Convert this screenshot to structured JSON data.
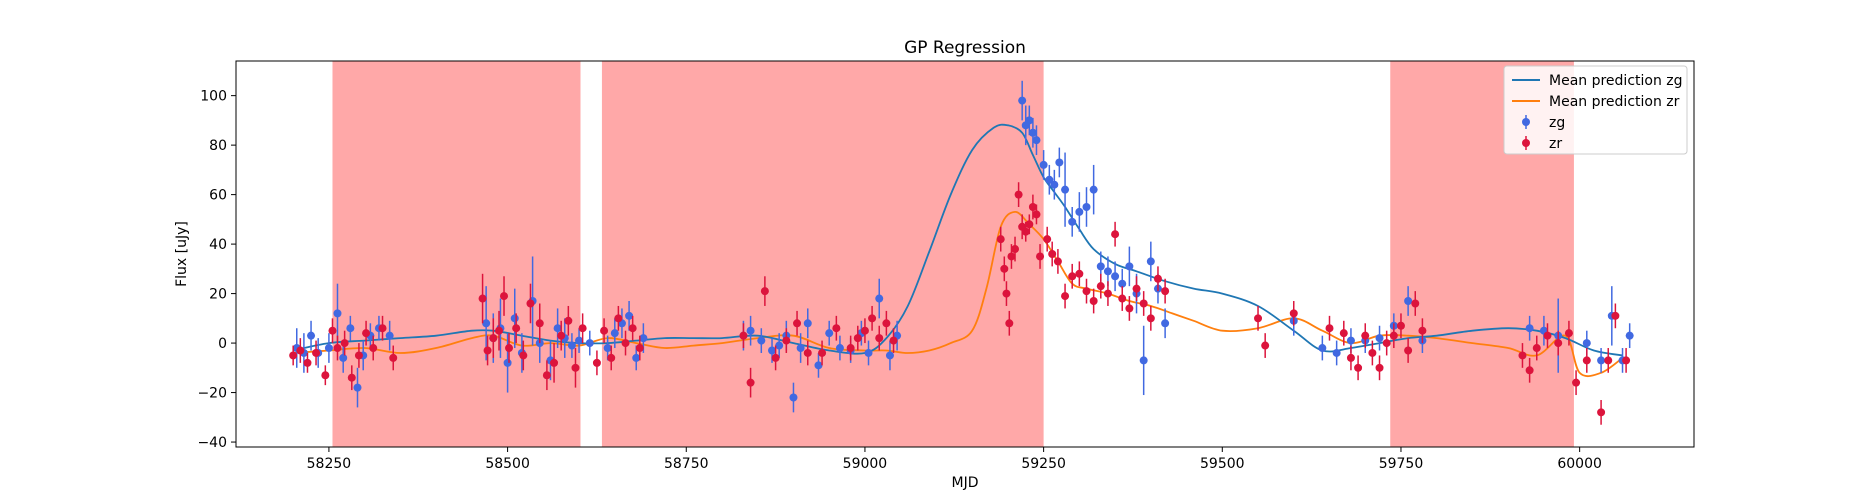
{
  "chart_data": {
    "type": "scatter",
    "title": "GP Regression",
    "xlabel": "MJD",
    "ylabel": "Flux [uJy]",
    "xlim": [
      58120,
      60160
    ],
    "ylim": [
      -42,
      114
    ],
    "xticks": [
      58250,
      58500,
      58750,
      59000,
      59250,
      59500,
      59750,
      60000
    ],
    "xtick_labels": [
      "58250",
      "58500",
      "58750",
      "59000",
      "59250",
      "59500",
      "59750",
      "60000"
    ],
    "yticks": [
      -40,
      -20,
      0,
      20,
      40,
      60,
      80,
      100
    ],
    "ytick_labels": [
      "−40",
      "−20",
      "0",
      "20",
      "40",
      "60",
      "80",
      "100"
    ],
    "grid": false,
    "legend_position": "top-right",
    "shaded_regions": [
      [
        58255,
        58602
      ],
      [
        58632,
        59250
      ],
      [
        59735,
        59992
      ]
    ],
    "shade_color": "#ff0000",
    "series": [
      {
        "name": "Mean prediction zg",
        "kind": "line",
        "color": "#1f77b4",
        "x": [
          58200,
          58250,
          58300,
          58350,
          58400,
          58450,
          58480,
          58520,
          58560,
          58600,
          58640,
          58680,
          58720,
          58760,
          58800,
          58850,
          58900,
          58950,
          59000,
          59030,
          59060,
          59090,
          59120,
          59150,
          59180,
          59200,
          59220,
          59235,
          59250,
          59265,
          59280,
          59300,
          59320,
          59350,
          59380,
          59420,
          59460,
          59500,
          59550,
          59600,
          59640,
          59680,
          59720,
          59760,
          59800,
          59850,
          59900,
          59940,
          59980,
          60020,
          60060
        ],
        "y": [
          -3,
          0,
          1,
          2,
          3,
          5,
          5,
          3,
          1,
          0,
          0,
          1,
          2,
          2,
          2,
          3,
          0,
          -3,
          -4,
          2,
          15,
          37,
          60,
          78,
          87,
          88,
          85,
          76,
          67,
          61,
          55,
          46,
          38,
          32,
          29,
          25,
          22,
          20,
          15,
          5,
          -3,
          -2,
          0,
          2,
          3,
          5,
          6,
          5,
          2,
          -3,
          -5
        ]
      },
      {
        "name": "Mean prediction zr",
        "kind": "line",
        "color": "#ff7f0e",
        "x": [
          58200,
          58250,
          58300,
          58350,
          58400,
          58450,
          58480,
          58520,
          58560,
          58600,
          58640,
          58680,
          58720,
          58760,
          58800,
          58850,
          58900,
          58950,
          59000,
          59030,
          59060,
          59090,
          59120,
          59150,
          59170,
          59190,
          59210,
          59230,
          59250,
          59270,
          59290,
          59310,
          59340,
          59370,
          59400,
          59430,
          59460,
          59500,
          59550,
          59600,
          59640,
          59680,
          59720,
          59760,
          59800,
          59850,
          59900,
          59940,
          59980,
          60000,
          60030,
          60060
        ],
        "y": [
          -4,
          -3,
          -2,
          -4,
          -2,
          2,
          3,
          -1,
          0,
          -1,
          2,
          0,
          -2,
          -1,
          0,
          2,
          3,
          -2,
          -3,
          -3,
          -4,
          -3,
          0,
          5,
          22,
          47,
          53,
          48,
          42,
          33,
          24,
          22,
          20,
          17,
          15,
          12,
          9,
          5,
          6,
          10,
          5,
          0,
          3,
          3,
          2,
          0,
          -2,
          -5,
          3,
          -12,
          -12,
          -6
        ]
      },
      {
        "name": "zg",
        "kind": "errorbar",
        "color": "#4169e1",
        "x": [
          58205,
          58215,
          58225,
          58235,
          58250,
          58262,
          58270,
          58280,
          58290,
          58298,
          58308,
          58320,
          58335,
          58470,
          58480,
          58490,
          58500,
          58510,
          58520,
          58535,
          58545,
          58560,
          58570,
          58580,
          58590,
          58600,
          58615,
          58640,
          58650,
          58660,
          58670,
          58680,
          58690,
          58830,
          58840,
          58855,
          58870,
          58880,
          58890,
          58900,
          58910,
          58920,
          58935,
          58950,
          58965,
          58980,
          58995,
          59005,
          59020,
          59035,
          59045,
          59220,
          59225,
          59230,
          59235,
          59240,
          59250,
          59258,
          59265,
          59272,
          59280,
          59290,
          59300,
          59310,
          59320,
          59330,
          59340,
          59350,
          59360,
          59370,
          59380,
          59390,
          59400,
          59410,
          59420,
          59600,
          59640,
          59660,
          59680,
          59700,
          59720,
          59740,
          59760,
          59780,
          59930,
          59950,
          59970,
          60010,
          60030,
          60045,
          60060,
          60070
        ],
        "y": [
          -2,
          -4,
          3,
          -4,
          -2,
          12,
          -6,
          6,
          -18,
          -5,
          3,
          6,
          3,
          8,
          2,
          6,
          -8,
          10,
          -4,
          17,
          0,
          -7,
          6,
          2,
          -1,
          1,
          0,
          -2,
          4,
          8,
          11,
          -6,
          2,
          3,
          5,
          1,
          -3,
          -1,
          3,
          -22,
          -2,
          8,
          -9,
          4,
          -2,
          -3,
          4,
          -4,
          18,
          -5,
          3,
          98,
          88,
          90,
          85,
          82,
          72,
          66,
          64,
          73,
          62,
          49,
          53,
          55,
          62,
          31,
          29,
          27,
          24,
          31,
          20,
          -7,
          33,
          22,
          8,
          9,
          -2,
          -4,
          1,
          1,
          2,
          7,
          17,
          1,
          6,
          5,
          3,
          0,
          -7,
          11,
          -7,
          3
        ],
        "err": [
          8,
          8,
          6,
          6,
          6,
          12,
          6,
          5,
          8,
          6,
          5,
          5,
          6,
          15,
          10,
          12,
          12,
          12,
          8,
          18,
          8,
          8,
          8,
          8,
          5,
          5,
          5,
          5,
          6,
          6,
          6,
          5,
          6,
          6,
          6,
          5,
          5,
          5,
          6,
          6,
          6,
          6,
          5,
          5,
          5,
          5,
          5,
          5,
          8,
          6,
          6,
          8,
          8,
          6,
          6,
          6,
          6,
          6,
          6,
          6,
          15,
          6,
          8,
          8,
          10,
          6,
          6,
          6,
          6,
          8,
          8,
          14,
          8,
          6,
          6,
          6,
          5,
          5,
          5,
          5,
          5,
          5,
          6,
          5,
          5,
          6,
          15,
          5,
          5,
          12,
          5,
          5
        ]
      },
      {
        "name": "zr",
        "kind": "errorbar",
        "color": "#dc143c",
        "x": [
          58200,
          58210,
          58220,
          58232,
          58245,
          58255,
          58262,
          58272,
          58282,
          58292,
          58302,
          58312,
          58325,
          58340,
          58465,
          58472,
          58480,
          58488,
          58495,
          58502,
          58512,
          58522,
          58532,
          58545,
          58555,
          58565,
          58575,
          58585,
          58595,
          58605,
          58625,
          58635,
          58645,
          58655,
          58665,
          58675,
          58685,
          58830,
          58840,
          58860,
          58875,
          58890,
          58905,
          58920,
          58940,
          58960,
          58980,
          58990,
          59000,
          59010,
          59020,
          59030,
          59040,
          59190,
          59195,
          59198,
          59202,
          59205,
          59210,
          59215,
          59220,
          59225,
          59230,
          59235,
          59240,
          59245,
          59255,
          59262,
          59270,
          59280,
          59290,
          59300,
          59310,
          59320,
          59330,
          59340,
          59350,
          59360,
          59370,
          59380,
          59390,
          59400,
          59410,
          59420,
          59550,
          59560,
          59600,
          59650,
          59670,
          59680,
          59690,
          59700,
          59710,
          59720,
          59730,
          59740,
          59750,
          59760,
          59770,
          59780,
          59920,
          59930,
          59940,
          59955,
          59970,
          59985,
          59995,
          60010,
          60030,
          60040,
          60050,
          60065
        ],
        "y": [
          -5,
          -3,
          -8,
          -4,
          -13,
          5,
          -2,
          0,
          -14,
          -5,
          4,
          -2,
          6,
          -6,
          18,
          -3,
          2,
          5,
          19,
          -2,
          6,
          -5,
          16,
          8,
          -13,
          -8,
          3,
          9,
          -10,
          6,
          -8,
          5,
          -6,
          10,
          0,
          6,
          -2,
          3,
          -16,
          21,
          -6,
          1,
          8,
          -4,
          -4,
          6,
          -2,
          2,
          5,
          10,
          2,
          8,
          1,
          42,
          30,
          20,
          8,
          35,
          38,
          60,
          47,
          45,
          48,
          55,
          52,
          35,
          42,
          36,
          33,
          19,
          27,
          28,
          21,
          17,
          23,
          20,
          44,
          18,
          14,
          22,
          16,
          10,
          26,
          21,
          10,
          -1,
          12,
          6,
          4,
          -6,
          -10,
          3,
          -4,
          -10,
          0,
          3,
          7,
          -3,
          16,
          5,
          -5,
          -11,
          -2,
          3,
          0,
          4,
          -16,
          -7,
          -28,
          -7,
          11,
          -7
        ],
        "err": [
          4,
          5,
          4,
          5,
          4,
          5,
          5,
          5,
          5,
          5,
          5,
          5,
          5,
          5,
          10,
          6,
          8,
          8,
          8,
          6,
          6,
          6,
          8,
          8,
          6,
          8,
          6,
          6,
          8,
          6,
          5,
          5,
          5,
          5,
          5,
          5,
          5,
          5,
          6,
          6,
          5,
          5,
          5,
          5,
          5,
          5,
          5,
          5,
          5,
          5,
          5,
          5,
          5,
          5,
          5,
          5,
          5,
          5,
          5,
          5,
          5,
          4,
          4,
          5,
          4,
          5,
          5,
          5,
          5,
          5,
          5,
          5,
          5,
          5,
          5,
          5,
          5,
          5,
          5,
          5,
          5,
          5,
          5,
          5,
          5,
          5,
          5,
          5,
          5,
          5,
          5,
          5,
          5,
          5,
          5,
          5,
          5,
          5,
          5,
          5,
          5,
          5,
          5,
          5,
          5,
          5,
          5,
          5,
          5,
          5,
          5,
          5
        ]
      }
    ]
  }
}
